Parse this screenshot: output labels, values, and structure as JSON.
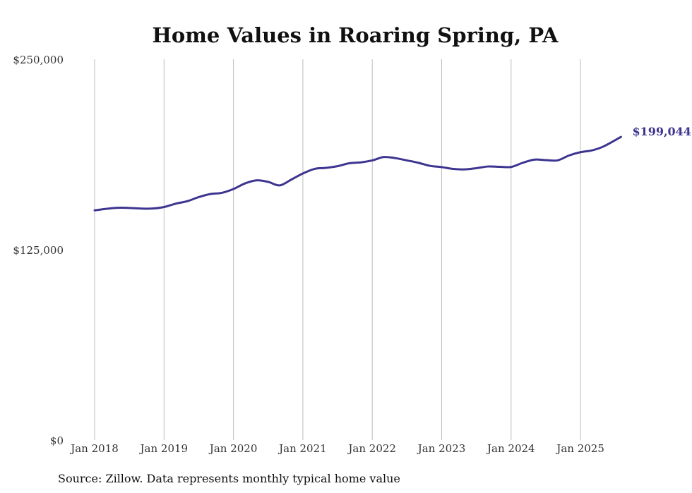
{
  "chart_data": {
    "type": "line",
    "title": "Home Values in Roaring Spring, PA",
    "source": "Source: Zillow. Data represents monthly typical home value",
    "xlabel": "",
    "ylabel": "",
    "ylim": [
      0,
      250000
    ],
    "y_ticks": [
      {
        "value": 0,
        "label": "$0"
      },
      {
        "value": 125000,
        "label": "$125,000"
      },
      {
        "value": 250000,
        "label": "$250,000"
      }
    ],
    "x_ticks": [
      {
        "t": 0,
        "label": "Jan 2018"
      },
      {
        "t": 12,
        "label": "Jan 2019"
      },
      {
        "t": 24,
        "label": "Jan 2020"
      },
      {
        "t": 36,
        "label": "Jan 2021"
      },
      {
        "t": 48,
        "label": "Jan 2022"
      },
      {
        "t": 60,
        "label": "Jan 2023"
      },
      {
        "t": 72,
        "label": "Jan 2024"
      },
      {
        "t": 84,
        "label": "Jan 2025"
      }
    ],
    "x_range": [
      0,
      91
    ],
    "grid": "vertical",
    "end_label": "$199,044",
    "colors": {
      "line": "#3d3590",
      "grid": "#bdbdbd"
    },
    "series": [
      {
        "name": "Typical home value",
        "points": [
          [
            0,
            150800
          ],
          [
            2,
            151800
          ],
          [
            4,
            152500
          ],
          [
            6,
            152400
          ],
          [
            8,
            152000
          ],
          [
            10,
            152000
          ],
          [
            12,
            153000
          ],
          [
            14,
            155200
          ],
          [
            16,
            156800
          ],
          [
            18,
            159500
          ],
          [
            20,
            161500
          ],
          [
            22,
            162300
          ],
          [
            24,
            164800
          ],
          [
            26,
            168500
          ],
          [
            28,
            170500
          ],
          [
            30,
            169500
          ],
          [
            32,
            167200
          ],
          [
            34,
            171000
          ],
          [
            36,
            175000
          ],
          [
            38,
            178000
          ],
          [
            40,
            178700
          ],
          [
            42,
            179800
          ],
          [
            44,
            181700
          ],
          [
            46,
            182300
          ],
          [
            48,
            183600
          ],
          [
            50,
            185800
          ],
          [
            52,
            185100
          ],
          [
            54,
            183600
          ],
          [
            56,
            182000
          ],
          [
            58,
            180000
          ],
          [
            60,
            179200
          ],
          [
            62,
            178000
          ],
          [
            64,
            177700
          ],
          [
            66,
            178500
          ],
          [
            68,
            179600
          ],
          [
            70,
            179400
          ],
          [
            72,
            179300
          ],
          [
            74,
            182000
          ],
          [
            76,
            184100
          ],
          [
            78,
            183800
          ],
          [
            80,
            183600
          ],
          [
            82,
            186800
          ],
          [
            84,
            189000
          ],
          [
            86,
            190200
          ],
          [
            88,
            192800
          ],
          [
            91,
            199044
          ]
        ]
      }
    ]
  }
}
